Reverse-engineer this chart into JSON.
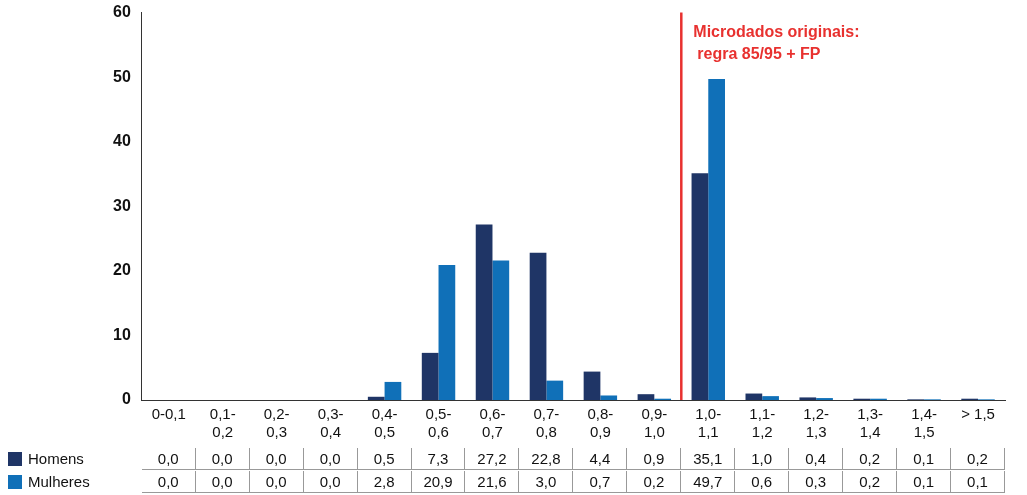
{
  "chart_data": {
    "type": "bar",
    "categories": [
      "0-0,1",
      "0,1-0,2",
      "0,2-0,3",
      "0,3-0,4",
      "0,4-0,5",
      "0,5-0,6",
      "0,6-0,7",
      "0,7-0,8",
      "0,8-0,9",
      "0,9-1,0",
      "1,0-1,1",
      "1,1-1,2",
      "1,2-1,3",
      "1,3-1,4",
      "1,4-1,5",
      "> 1,5"
    ],
    "series": [
      {
        "name": "Homens",
        "color": "#1f3566",
        "values": [
          0.0,
          0.0,
          0.0,
          0.0,
          0.5,
          7.3,
          27.2,
          22.8,
          4.4,
          0.9,
          35.1,
          1.0,
          0.4,
          0.2,
          0.1,
          0.2
        ],
        "value_labels": [
          "0,0",
          "0,0",
          "0,0",
          "0,0",
          "0,5",
          "7,3",
          "27,2",
          "22,8",
          "4,4",
          "0,9",
          "35,1",
          "1,0",
          "0,4",
          "0,2",
          "0,1",
          "0,2"
        ]
      },
      {
        "name": "Mulheres",
        "color": "#1070b8",
        "values": [
          0.0,
          0.0,
          0.0,
          0.0,
          2.8,
          20.9,
          21.6,
          3.0,
          0.7,
          0.2,
          49.7,
          0.6,
          0.3,
          0.2,
          0.1,
          0.1
        ],
        "value_labels": [
          "0,0",
          "0,0",
          "0,0",
          "0,0",
          "2,8",
          "20,9",
          "21,6",
          "3,0",
          "0,7",
          "0,2",
          "49,7",
          "0,6",
          "0,3",
          "0,2",
          "0,1",
          "0,1"
        ]
      }
    ],
    "ylim": [
      0,
      60
    ],
    "yticks": [
      0,
      10,
      20,
      30,
      40,
      50,
      60
    ],
    "grid": false,
    "legend": "bottom",
    "ref_lines": [
      {
        "axis": "x",
        "value": "1,0-1,1",
        "label": "Microdados originais: regra 85/95 + FP",
        "color": "#e8312f"
      }
    ]
  }
}
